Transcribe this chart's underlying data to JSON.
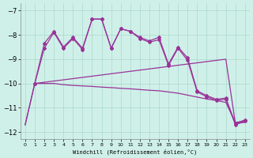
{
  "xlabel": "Windchill (Refroidissement éolien,°C)",
  "background_color": "#cff0e8",
  "grid_color": "#aad8cc",
  "line_color": "#993399",
  "xlim": [
    -0.5,
    23.5
  ],
  "ylim": [
    -12.3,
    -6.7
  ],
  "yticks": [
    -12,
    -11,
    -10,
    -9,
    -8,
    -7
  ],
  "xticks": [
    0,
    1,
    2,
    3,
    4,
    5,
    6,
    7,
    8,
    9,
    10,
    11,
    12,
    13,
    14,
    15,
    16,
    17,
    18,
    19,
    20,
    21,
    22,
    23
  ],
  "flat1_x": [
    0,
    1,
    2,
    3,
    4,
    5,
    6,
    7,
    8,
    9,
    10,
    11,
    12,
    13,
    14,
    15,
    16,
    17,
    18,
    19,
    20,
    21,
    22,
    23
  ],
  "flat1_y": [
    -11.7,
    -10.0,
    -10.0,
    -10.0,
    -10.05,
    -10.08,
    -10.1,
    -10.12,
    -10.15,
    -10.17,
    -10.2,
    -10.22,
    -10.25,
    -10.28,
    -10.3,
    -10.35,
    -10.4,
    -10.48,
    -10.56,
    -10.64,
    -10.7,
    -10.78,
    -11.6,
    -11.55
  ],
  "flat2_x": [
    0,
    1,
    2,
    3,
    4,
    5,
    6,
    7,
    8,
    9,
    10,
    11,
    12,
    13,
    14,
    15,
    16,
    17,
    18,
    19,
    20,
    21,
    22,
    23
  ],
  "flat2_y": [
    -11.7,
    -10.0,
    -9.95,
    -9.9,
    -9.85,
    -9.8,
    -9.75,
    -9.7,
    -9.65,
    -9.6,
    -9.55,
    -9.5,
    -9.45,
    -9.4,
    -9.35,
    -9.3,
    -9.25,
    -9.2,
    -9.15,
    -9.1,
    -9.05,
    -9.0,
    -11.65,
    -11.6
  ],
  "spiky1_x": [
    1,
    2,
    3,
    4,
    5,
    6,
    7,
    8,
    9,
    10,
    11,
    12,
    13,
    14,
    15,
    16,
    17,
    18,
    19,
    20,
    21,
    22,
    23
  ],
  "spiky1_y": [
    -10.0,
    -8.55,
    -7.9,
    -8.55,
    -8.15,
    -8.6,
    -7.35,
    -7.35,
    -8.55,
    -7.75,
    -7.85,
    -8.15,
    -8.3,
    -8.2,
    -9.25,
    -8.55,
    -9.05,
    -10.35,
    -10.55,
    -10.7,
    -10.65,
    -11.7,
    -11.55
  ],
  "spiky2_x": [
    1,
    2,
    3,
    4,
    5,
    6,
    7,
    8,
    9,
    10,
    11,
    12,
    13,
    14,
    15,
    16,
    17,
    18,
    19,
    20,
    21,
    22,
    23
  ],
  "spiky2_y": [
    -10.0,
    -8.35,
    -7.85,
    -8.5,
    -8.1,
    -8.55,
    -7.35,
    -7.35,
    -8.55,
    -7.75,
    -7.85,
    -8.1,
    -8.25,
    -8.1,
    -9.2,
    -8.5,
    -8.95,
    -10.3,
    -10.5,
    -10.65,
    -10.6,
    -11.65,
    -11.5
  ]
}
